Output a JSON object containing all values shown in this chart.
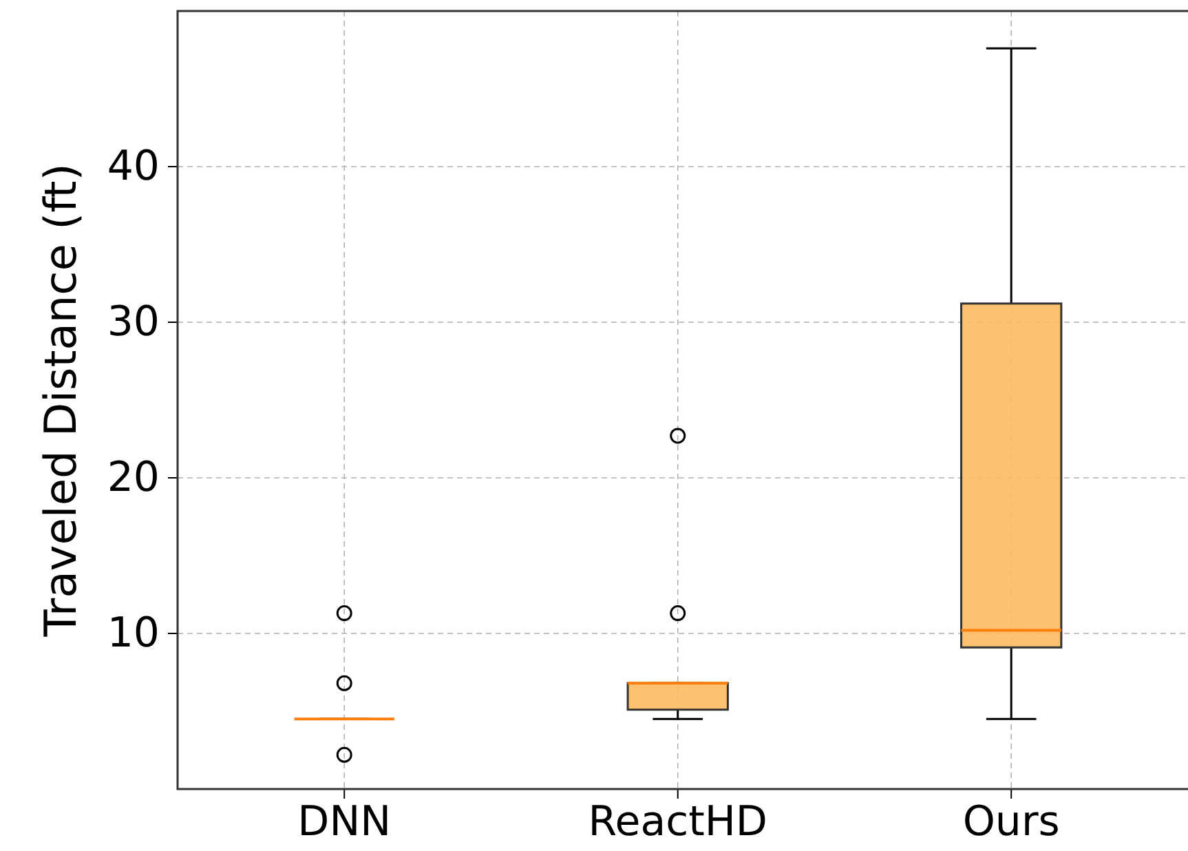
{
  "chart_data": {
    "type": "box",
    "ylabel": "Traveled Distance (ft)",
    "categories": [
      "DNN",
      "ReactHD",
      "Ours"
    ],
    "boxes": [
      {
        "low": 4.5,
        "q1": 4.5,
        "median": 4.5,
        "q3": 4.5,
        "high": 4.5,
        "outliers": [
          2.2,
          6.8,
          11.3
        ]
      },
      {
        "low": 4.5,
        "q1": 5.1,
        "median": 6.8,
        "q3": 6.8,
        "high": 6.8,
        "outliers": [
          11.3,
          22.7
        ]
      },
      {
        "low": 4.5,
        "q1": 9.1,
        "median": 10.2,
        "q3": 31.2,
        "high": 47.6
      }
    ],
    "color": "#fdbb5f",
    "ylim": [
      0,
      50
    ],
    "yticks": [
      10,
      20,
      30,
      40
    ],
    "grid": true
  }
}
